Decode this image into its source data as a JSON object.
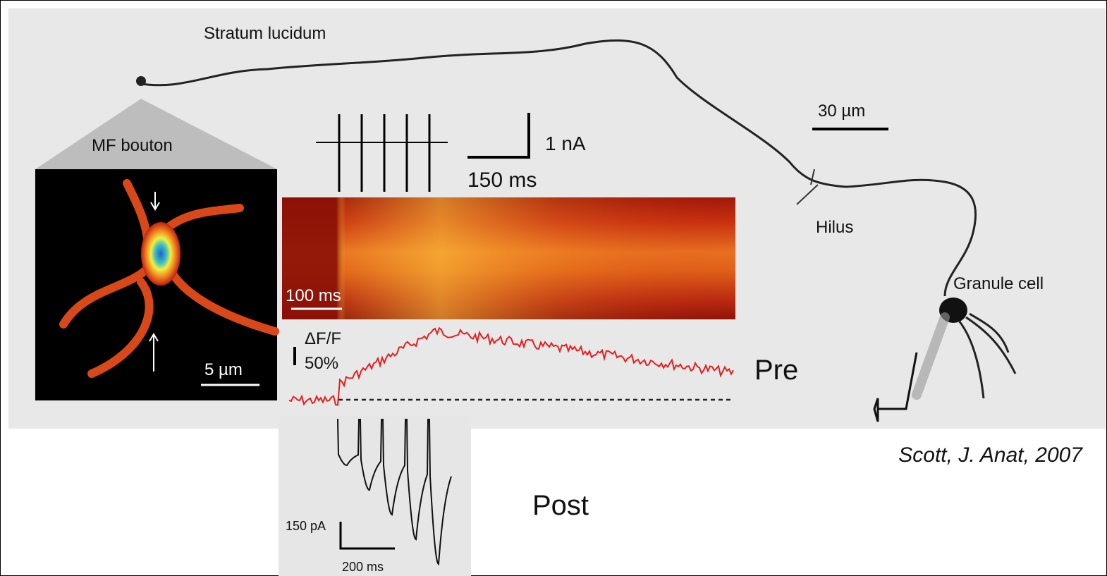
{
  "figure": {
    "labels": {
      "stratum_lucidum": "Stratum lucidum",
      "mf_bouton": "MF bouton",
      "current_scale": "1 nA",
      "time_scale_top": "150 ms",
      "length_scale": "30 µm",
      "hilus": "Hilus",
      "granule_cell": "Granule cell",
      "linescan_time": "100 ms",
      "df_f": "ΔF/F",
      "df_f_scale": "50%",
      "bouton_scale": "5 µm",
      "pre": "Pre",
      "post": "Post",
      "post_current_scale": "150 pA",
      "post_time_scale": "200 ms"
    },
    "citation": "Scott, J. Anat, 2007"
  }
}
